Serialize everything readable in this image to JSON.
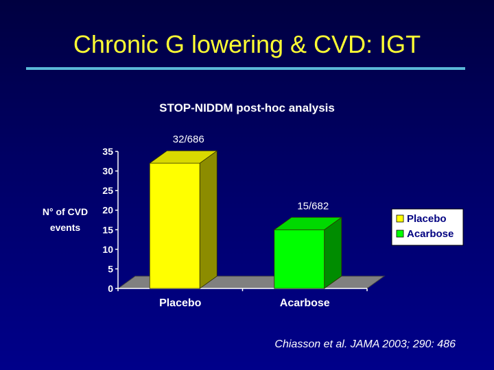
{
  "slide": {
    "title": "Chronic G lowering & CVD: IGT",
    "citation": "Chiasson et al. JAMA 2003; 290: 486"
  },
  "colors": {
    "title": "#ffff33",
    "rule": "#5ab8d8",
    "placebo": "#ffff00",
    "acarbose": "#00ff00"
  },
  "chart_data": {
    "type": "bar",
    "title": "STOP-NIDDM post-hoc analysis",
    "ylabel": "N° of CVD events",
    "xlabel": "",
    "categories": [
      "Placebo",
      "Acarbose"
    ],
    "values": [
      32,
      15
    ],
    "data_labels": [
      "32/686",
      "15/682"
    ],
    "ylim": [
      0,
      35
    ],
    "yticks": [
      0,
      5,
      10,
      15,
      20,
      25,
      30,
      35
    ],
    "grid": false,
    "three_d": true,
    "legend_position": "right",
    "series": [
      {
        "name": "Placebo",
        "color": "#ffff00"
      },
      {
        "name": "Acarbose",
        "color": "#00ff00"
      }
    ]
  }
}
